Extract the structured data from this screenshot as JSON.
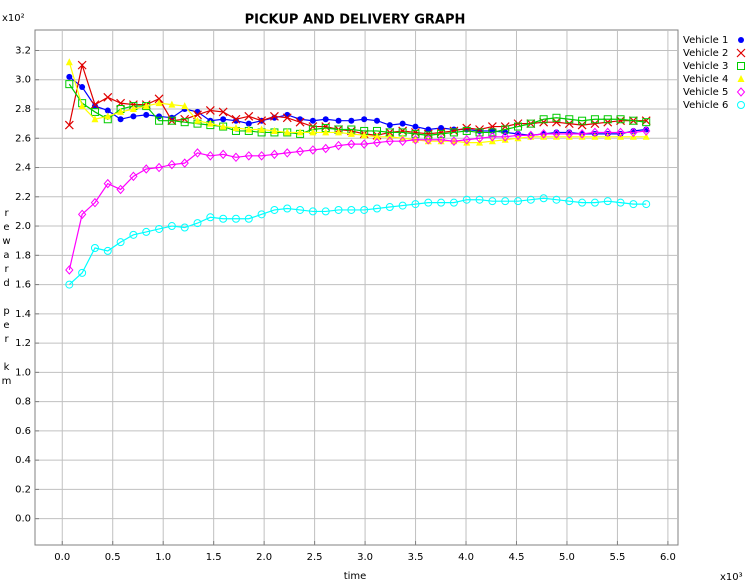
{
  "chart_data": {
    "type": "line",
    "title": "PICKUP AND DELIVERY GRAPH",
    "x_label": "time",
    "y_label": "reward per km",
    "x_multiplier": "x10³",
    "y_multiplier": "x10²",
    "xlim": [
      -0.27,
      6.1
    ],
    "ylim": [
      -0.18,
      3.34
    ],
    "xticks": [
      {
        "value": 0,
        "label": "0.0"
      },
      0.5,
      {
        "value": 1,
        "label": "1.0"
      },
      1.5,
      {
        "value": 2,
        "label": "2.0"
      },
      2.5,
      {
        "value": 3,
        "label": "3.0"
      },
      3.5,
      {
        "value": 4,
        "label": "4.0"
      },
      4.5,
      {
        "value": 5,
        "label": "5.0"
      },
      5.5,
      {
        "value": 6,
        "label": "6.0"
      }
    ],
    "yticks": [
      {
        "value": 0,
        "label": "0.0"
      },
      0.2,
      0.4,
      0.6,
      0.8,
      {
        "value": 1,
        "label": "1.0"
      },
      1.2,
      1.4,
      1.6,
      1.8,
      {
        "value": 2,
        "label": "2.0"
      },
      2.2,
      2.4,
      2.6,
      2.8,
      {
        "value": 3,
        "label": "3.0"
      },
      3.2
    ],
    "grid": true,
    "legend": "right",
    "x": [
      0.07,
      0.197,
      0.324,
      0.451,
      0.578,
      0.705,
      0.832,
      0.959,
      1.086,
      1.213,
      1.34,
      1.467,
      1.594,
      1.721,
      1.848,
      1.975,
      2.102,
      2.229,
      2.356,
      2.483,
      2.61,
      2.737,
      2.864,
      2.991,
      3.118,
      3.245,
      3.372,
      3.499,
      3.626,
      3.753,
      3.88,
      4.007,
      4.134,
      4.261,
      4.388,
      4.515,
      4.642,
      4.769,
      4.896,
      5.023,
      5.15,
      5.277,
      5.404,
      5.531,
      5.658,
      5.785
    ],
    "series": [
      {
        "name": "Vehicle 1",
        "color": "#0000ff",
        "marker": "dot",
        "values": [
          3.02,
          2.95,
          2.82,
          2.79,
          2.73,
          2.75,
          2.76,
          2.75,
          2.74,
          2.8,
          2.78,
          2.72,
          2.73,
          2.72,
          2.7,
          2.72,
          2.74,
          2.76,
          2.73,
          2.72,
          2.73,
          2.72,
          2.72,
          2.73,
          2.72,
          2.69,
          2.7,
          2.68,
          2.66,
          2.67,
          2.66,
          2.66,
          2.65,
          2.65,
          2.64,
          2.63,
          2.62,
          2.63,
          2.64,
          2.64,
          2.63,
          2.63,
          2.63,
          2.63,
          2.65,
          2.66
        ]
      },
      {
        "name": "Vehicle 2",
        "color": "#e00000",
        "marker": "cross",
        "values": [
          2.69,
          3.1,
          2.83,
          2.88,
          2.84,
          2.83,
          2.83,
          2.87,
          2.72,
          2.73,
          2.76,
          2.79,
          2.78,
          2.73,
          2.75,
          2.72,
          2.75,
          2.74,
          2.71,
          2.68,
          2.68,
          2.66,
          2.65,
          2.63,
          2.62,
          2.64,
          2.65,
          2.64,
          2.63,
          2.64,
          2.65,
          2.67,
          2.66,
          2.68,
          2.68,
          2.7,
          2.7,
          2.71,
          2.71,
          2.7,
          2.69,
          2.7,
          2.71,
          2.72,
          2.72,
          2.72
        ]
      },
      {
        "name": "Vehicle 3",
        "color": "#00cc00",
        "marker": "square",
        "values": [
          2.97,
          2.84,
          2.78,
          2.73,
          2.8,
          2.82,
          2.82,
          2.72,
          2.72,
          2.71,
          2.7,
          2.69,
          2.68,
          2.65,
          2.65,
          2.64,
          2.64,
          2.64,
          2.63,
          2.66,
          2.67,
          2.66,
          2.66,
          2.65,
          2.65,
          2.64,
          2.64,
          2.63,
          2.62,
          2.63,
          2.64,
          2.65,
          2.64,
          2.64,
          2.66,
          2.68,
          2.7,
          2.73,
          2.74,
          2.73,
          2.72,
          2.73,
          2.73,
          2.73,
          2.72,
          2.71
        ]
      },
      {
        "name": "Vehicle 4",
        "color": "#ffff00",
        "marker": "triangle",
        "values": [
          3.12,
          2.82,
          2.73,
          2.75,
          2.78,
          2.8,
          2.82,
          2.84,
          2.83,
          2.82,
          2.72,
          2.7,
          2.68,
          2.67,
          2.66,
          2.66,
          2.65,
          2.64,
          2.64,
          2.64,
          2.64,
          2.64,
          2.63,
          2.62,
          2.61,
          2.61,
          2.6,
          2.59,
          2.58,
          2.58,
          2.58,
          2.57,
          2.57,
          2.58,
          2.59,
          2.6,
          2.61,
          2.61,
          2.61,
          2.61,
          2.61,
          2.61,
          2.61,
          2.61,
          2.61,
          2.61
        ]
      },
      {
        "name": "Vehicle 5",
        "color": "#ff00ff",
        "marker": "diamond",
        "values": [
          1.7,
          2.08,
          2.16,
          2.29,
          2.25,
          2.34,
          2.39,
          2.4,
          2.42,
          2.43,
          2.5,
          2.48,
          2.49,
          2.47,
          2.48,
          2.48,
          2.49,
          2.5,
          2.51,
          2.52,
          2.53,
          2.55,
          2.56,
          2.56,
          2.57,
          2.58,
          2.58,
          2.59,
          2.59,
          2.59,
          2.58,
          2.59,
          2.6,
          2.61,
          2.61,
          2.62,
          2.62,
          2.63,
          2.63,
          2.63,
          2.63,
          2.64,
          2.64,
          2.64,
          2.64,
          2.65
        ]
      },
      {
        "name": "Vehicle 6",
        "color": "#00ffff",
        "marker": "circle",
        "values": [
          1.6,
          1.68,
          1.85,
          1.83,
          1.89,
          1.94,
          1.96,
          1.98,
          2.0,
          1.99,
          2.02,
          2.06,
          2.05,
          2.05,
          2.05,
          2.08,
          2.11,
          2.12,
          2.11,
          2.1,
          2.1,
          2.11,
          2.11,
          2.11,
          2.12,
          2.13,
          2.14,
          2.15,
          2.16,
          2.16,
          2.16,
          2.18,
          2.18,
          2.17,
          2.17,
          2.17,
          2.18,
          2.19,
          2.18,
          2.17,
          2.16,
          2.16,
          2.17,
          2.16,
          2.15,
          2.15
        ]
      }
    ]
  }
}
